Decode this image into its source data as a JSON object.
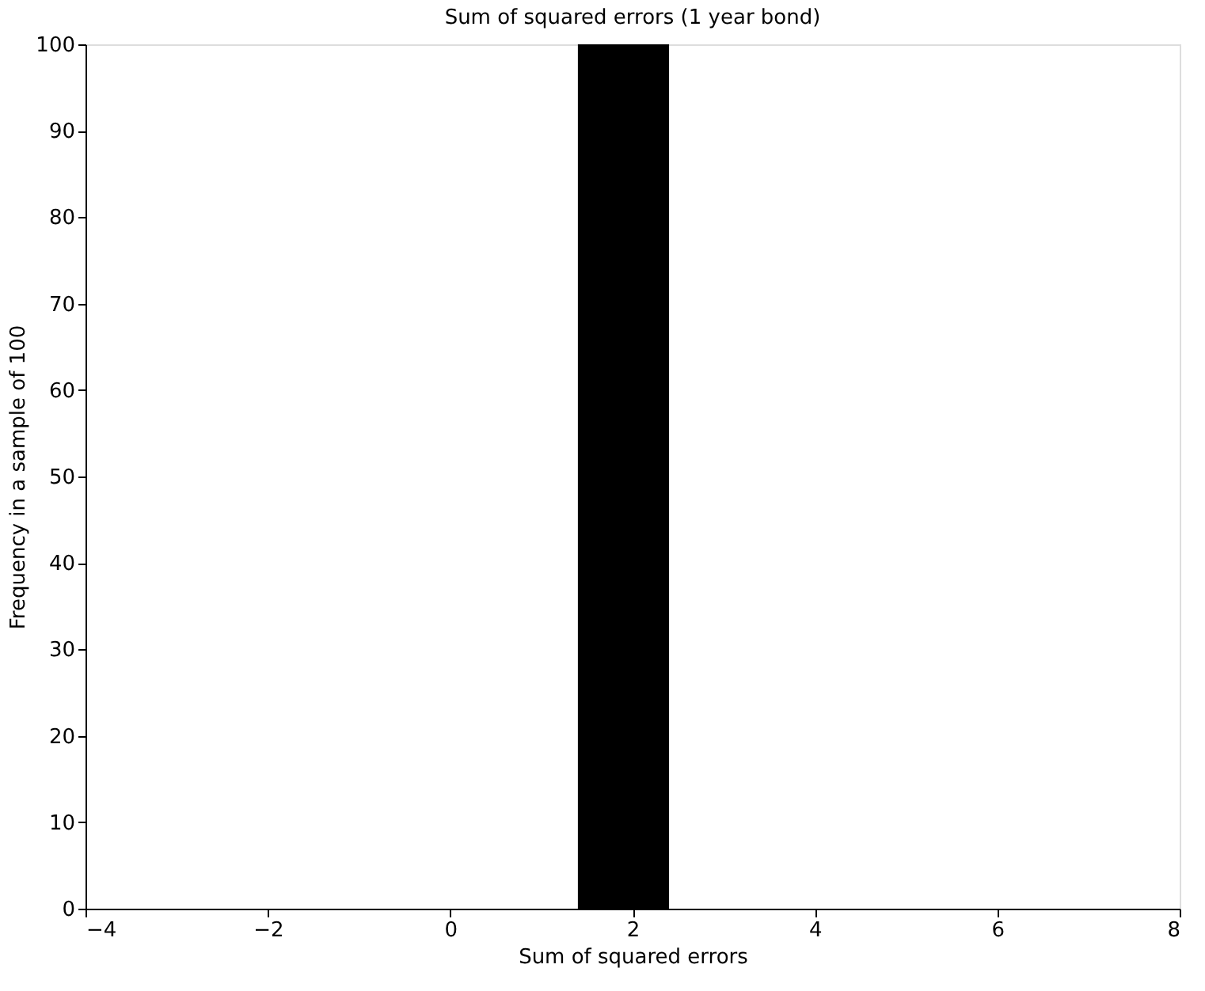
{
  "chart_data": {
    "type": "histogram",
    "title": "Sum of squared errors (1 year bond)",
    "xlabel": "Sum of squared errors",
    "ylabel": "Frequency in a sample of 100",
    "bins": [
      1.4,
      2.4
    ],
    "values": [
      100
    ],
    "color": "#000000",
    "xlim": [
      -4,
      8
    ],
    "xticks": [
      -4,
      -2,
      0,
      2,
      4,
      6,
      8
    ],
    "ylim": [
      0,
      100
    ],
    "yticks": [
      0,
      10,
      20,
      30,
      40,
      50,
      60,
      70,
      80,
      90,
      100
    ],
    "grid": false
  }
}
